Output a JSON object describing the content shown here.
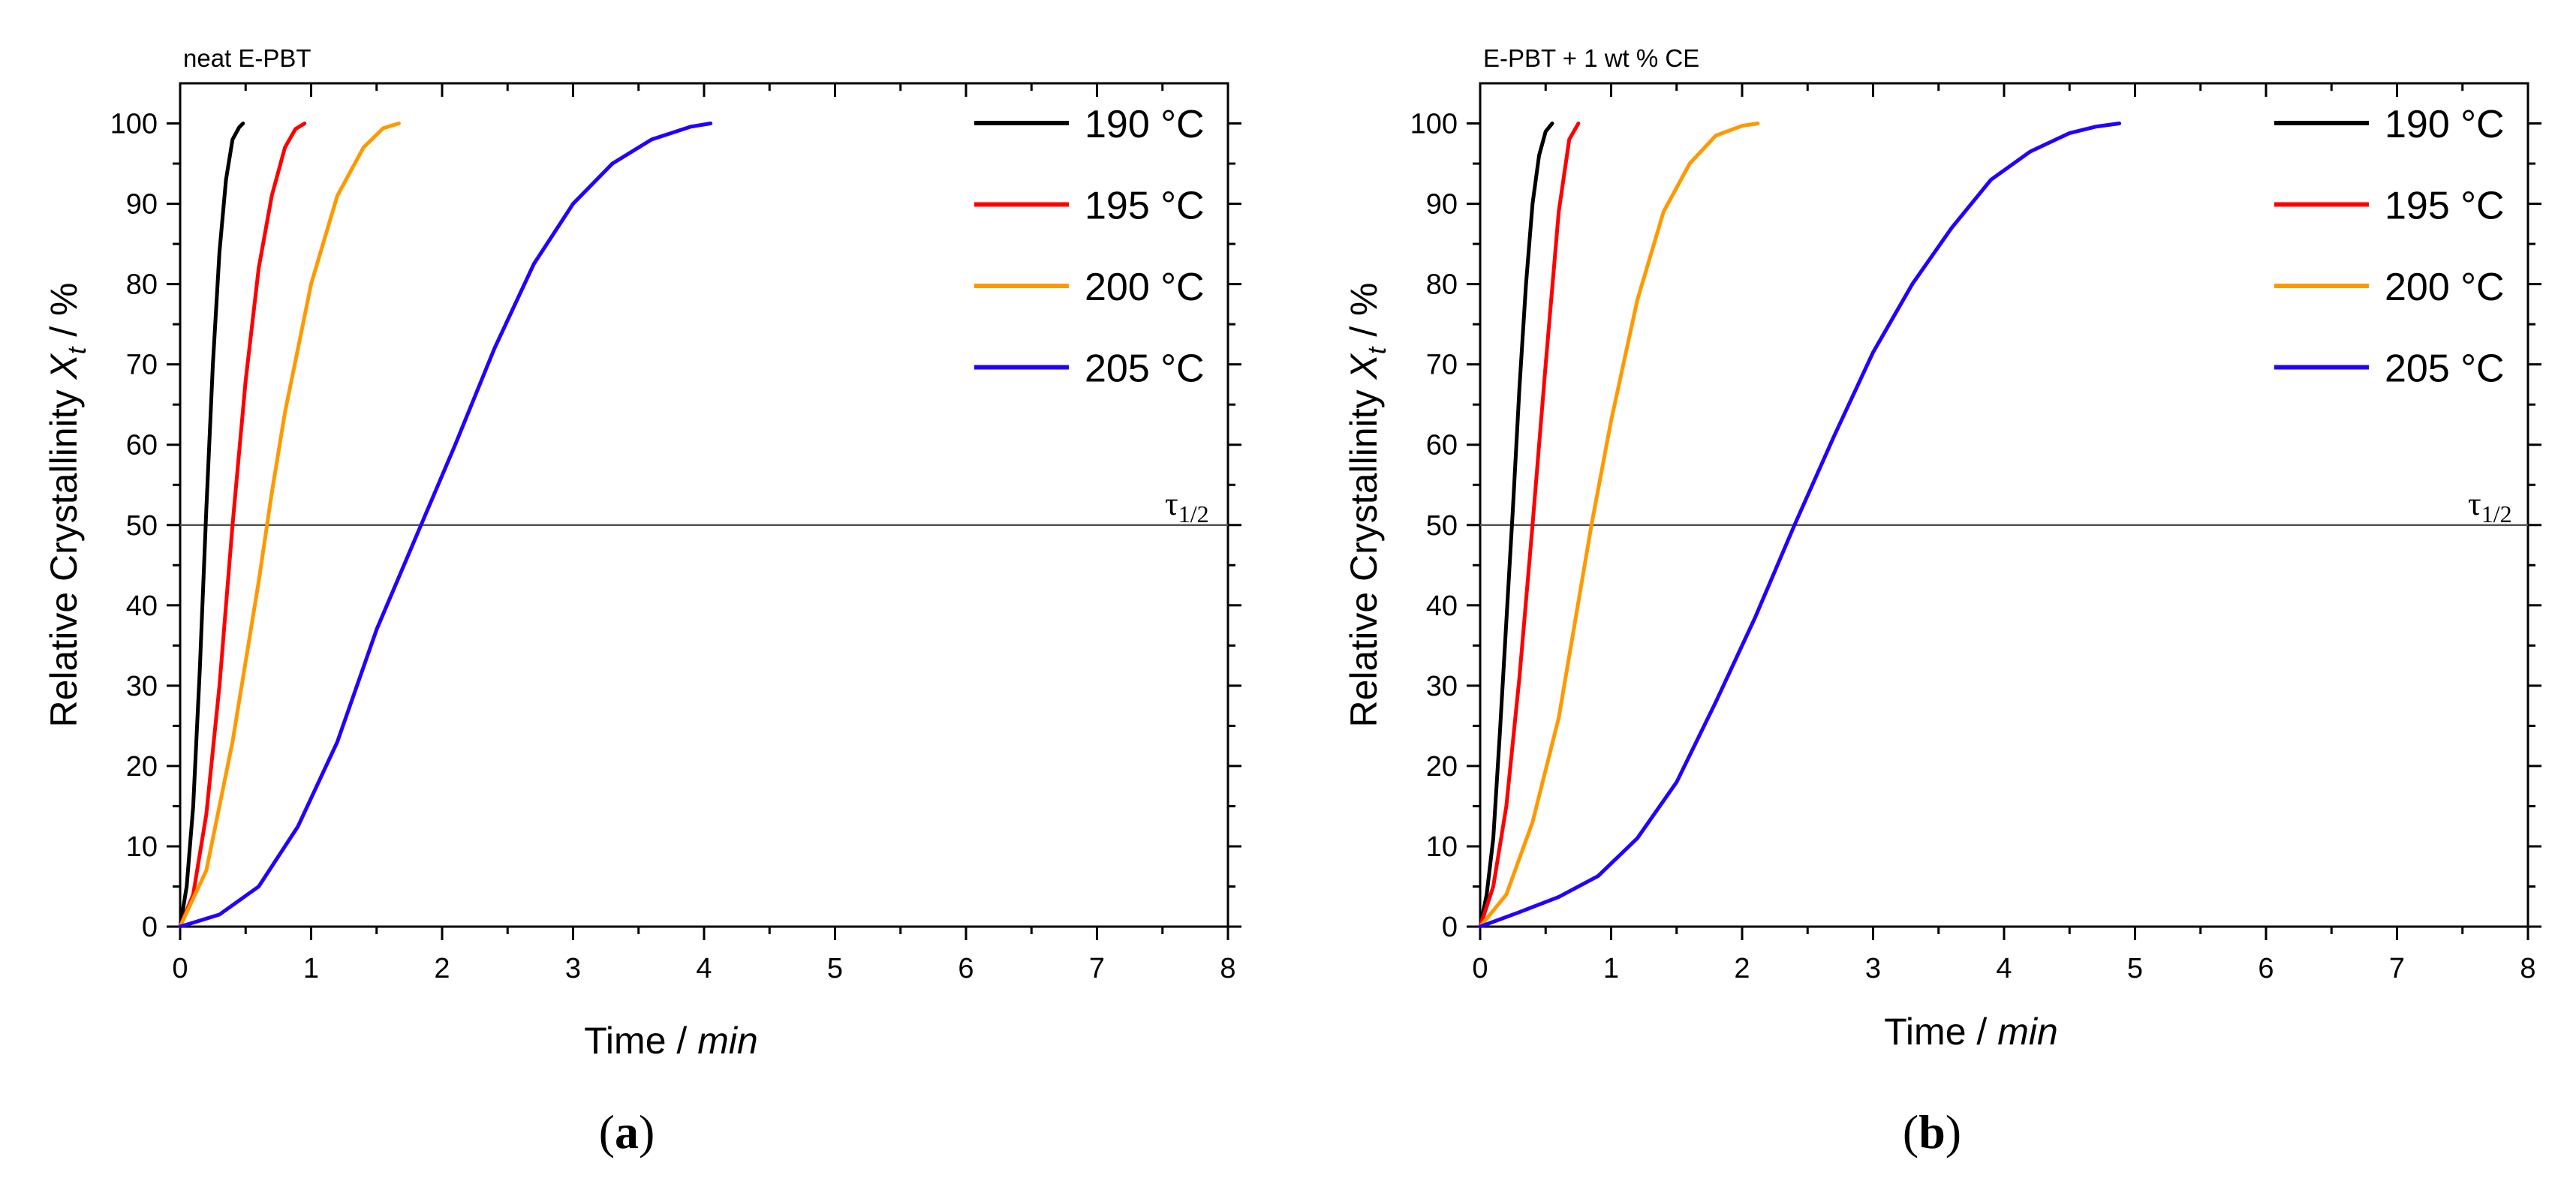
{
  "chart_data": [
    {
      "type": "line",
      "panel_label": "a",
      "title": "neat E-PBT",
      "xlabel": "Time",
      "xlabel_unit": "min",
      "ylabel": "Relative Crystallinity",
      "ylabel_symbol": "X",
      "ylabel_subscript": "t",
      "ylabel_unit": "%",
      "xlim": [
        0,
        8
      ],
      "ylim": [
        0,
        105
      ],
      "xticks": [
        0,
        1,
        2,
        3,
        4,
        5,
        6,
        7,
        8
      ],
      "yticks": [
        0,
        10,
        20,
        30,
        40,
        50,
        60,
        70,
        80,
        90,
        100
      ],
      "reference_line": {
        "y": 50,
        "label": "τ",
        "label_subscript": "1/2"
      },
      "legend_position": "top-right",
      "series": [
        {
          "name": "190 °C",
          "label_value": "190",
          "label_unit": "°C",
          "color": "#000000",
          "x": [
            0,
            0.05,
            0.1,
            0.15,
            0.2,
            0.25,
            0.3,
            0.35,
            0.4,
            0.45,
            0.48
          ],
          "y": [
            0,
            5,
            15,
            32,
            52,
            70,
            84,
            93,
            98,
            99.5,
            100
          ]
        },
        {
          "name": "195 °C",
          "label_value": "195",
          "label_unit": "°C",
          "color": "#ff0000",
          "x": [
            0,
            0.1,
            0.2,
            0.3,
            0.4,
            0.5,
            0.6,
            0.7,
            0.8,
            0.88,
            0.95
          ],
          "y": [
            0,
            4,
            14,
            30,
            50,
            68,
            82,
            91,
            97,
            99.3,
            100
          ]
        },
        {
          "name": "200 °C",
          "label_value": "200",
          "label_unit": "°C",
          "color": "#ff9900",
          "x": [
            0,
            0.2,
            0.4,
            0.6,
            0.7,
            0.8,
            1.0,
            1.2,
            1.4,
            1.55,
            1.67
          ],
          "y": [
            0,
            7,
            23,
            43,
            54,
            64,
            80,
            91,
            97,
            99.4,
            100
          ]
        },
        {
          "name": "205 °C",
          "label_value": "205",
          "label_unit": "°C",
          "color": "#2200ff",
          "x": [
            0,
            0.3,
            0.6,
            0.9,
            1.2,
            1.5,
            1.8,
            2.1,
            2.4,
            2.7,
            3.0,
            3.3,
            3.6,
            3.9,
            4.05
          ],
          "y": [
            0,
            1.5,
            5,
            12.5,
            23,
            37,
            48.5,
            60,
            72,
            82.5,
            90,
            95,
            98,
            99.6,
            100
          ]
        }
      ]
    },
    {
      "type": "line",
      "panel_label": "b",
      "title": "E-PBT + 1 wt % CE",
      "xlabel": "Time",
      "xlabel_unit": "min",
      "ylabel": "Relative Crystallinity",
      "ylabel_symbol": "X",
      "ylabel_subscript": "t",
      "ylabel_unit": "%",
      "xlim": [
        0,
        8
      ],
      "ylim": [
        0,
        105
      ],
      "xticks": [
        0,
        1,
        2,
        3,
        4,
        5,
        6,
        7,
        8
      ],
      "yticks": [
        0,
        10,
        20,
        30,
        40,
        50,
        60,
        70,
        80,
        90,
        100
      ],
      "reference_line": {
        "y": 50,
        "label": "τ",
        "label_subscript": "1/2"
      },
      "legend_position": "top-right",
      "series": [
        {
          "name": "190 °C",
          "label_value": "190",
          "label_unit": "°C",
          "color": "#000000",
          "x": [
            0,
            0.05,
            0.1,
            0.15,
            0.2,
            0.25,
            0.3,
            0.35,
            0.4,
            0.45,
            0.5,
            0.55
          ],
          "y": [
            0,
            4,
            11,
            24,
            38,
            52,
            67,
            80,
            90,
            96,
            99,
            100
          ]
        },
        {
          "name": "195 °C",
          "label_value": "195",
          "label_unit": "°C",
          "color": "#ff0000",
          "x": [
            0,
            0.1,
            0.2,
            0.3,
            0.4,
            0.5,
            0.6,
            0.68,
            0.75
          ],
          "y": [
            0,
            5,
            15,
            31,
            50,
            70,
            89,
            98,
            100
          ]
        },
        {
          "name": "200 °C",
          "label_value": "200",
          "label_unit": "°C",
          "color": "#ff9900",
          "x": [
            0,
            0.2,
            0.4,
            0.6,
            0.85,
            1.0,
            1.2,
            1.4,
            1.6,
            1.8,
            2.0,
            2.12
          ],
          "y": [
            0,
            4,
            13,
            26,
            50,
            63,
            78,
            89,
            95,
            98.5,
            99.7,
            100
          ]
        },
        {
          "name": "205 °C",
          "label_value": "205",
          "label_unit": "°C",
          "color": "#2200ff",
          "x": [
            0,
            0.3,
            0.6,
            0.9,
            1.2,
            1.5,
            1.8,
            2.1,
            2.4,
            2.7,
            3.0,
            3.3,
            3.6,
            3.9,
            4.2,
            4.5,
            4.7,
            4.88
          ],
          "y": [
            0,
            1.8,
            3.7,
            6.3,
            11,
            18,
            28,
            38.5,
            50,
            61,
            71.5,
            80,
            87,
            93,
            96.5,
            98.8,
            99.6,
            100
          ]
        }
      ]
    }
  ]
}
